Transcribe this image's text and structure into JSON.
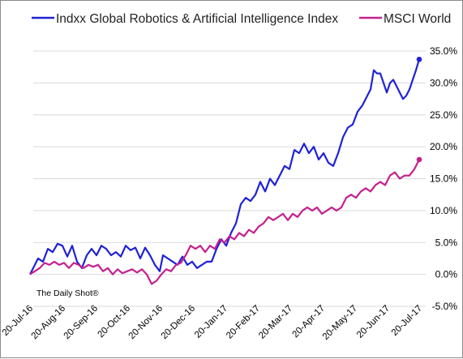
{
  "credit": "The Daily Shot®",
  "chart_data": {
    "type": "line",
    "title": "",
    "xlabel": "",
    "ylabel": "",
    "ylim": [
      -5,
      35
    ],
    "y_ticks": [
      35,
      30,
      25,
      20,
      15,
      10,
      5,
      0,
      -5
    ],
    "y_tick_labels": [
      "35.0%",
      "30.0%",
      "25.0%",
      "20.0%",
      "15.0%",
      "10.0%",
      "5.0%",
      "0.0%",
      "-5.0%"
    ],
    "x_tick_labels": [
      "20-Jul-16",
      "20-Aug-16",
      "20-Sep-16",
      "20-Oct-16",
      "20-Nov-16",
      "20-Dec-16",
      "20-Jan-17",
      "20-Feb-17",
      "20-Mar-17",
      "20-Apr-17",
      "20-May-17",
      "20-Jun-17",
      "20-Jul-17"
    ],
    "grid": "horizontal",
    "legend": "top",
    "series": [
      {
        "name": "Indxx Global Robotics & Artificial Intelligence Index",
        "color": "#1f22d6",
        "points": [
          [
            0.0,
            0.0
          ],
          [
            0.1,
            1.0
          ],
          [
            0.25,
            2.5
          ],
          [
            0.4,
            2.0
          ],
          [
            0.55,
            4.0
          ],
          [
            0.7,
            3.5
          ],
          [
            0.85,
            4.8
          ],
          [
            1.0,
            4.5
          ],
          [
            1.15,
            2.8
          ],
          [
            1.3,
            4.5
          ],
          [
            1.45,
            2.0
          ],
          [
            1.6,
            1.0
          ],
          [
            1.75,
            3.0
          ],
          [
            1.9,
            4.0
          ],
          [
            2.05,
            3.0
          ],
          [
            2.2,
            4.5
          ],
          [
            2.35,
            4.0
          ],
          [
            2.5,
            3.0
          ],
          [
            2.65,
            3.5
          ],
          [
            2.8,
            2.8
          ],
          [
            2.95,
            4.5
          ],
          [
            3.1,
            3.8
          ],
          [
            3.25,
            4.2
          ],
          [
            3.4,
            2.5
          ],
          [
            3.55,
            4.2
          ],
          [
            3.7,
            3.0
          ],
          [
            3.85,
            1.5
          ],
          [
            4.0,
            0.5
          ],
          [
            4.1,
            3.0
          ],
          [
            4.25,
            2.5
          ],
          [
            4.4,
            2.0
          ],
          [
            4.55,
            1.5
          ],
          [
            4.7,
            2.8
          ],
          [
            4.85,
            1.5
          ],
          [
            5.0,
            2.0
          ],
          [
            5.15,
            1.0
          ],
          [
            5.3,
            1.5
          ],
          [
            5.45,
            2.0
          ],
          [
            5.6,
            2.0
          ],
          [
            5.75,
            4.0
          ],
          [
            5.9,
            5.5
          ],
          [
            6.05,
            4.5
          ],
          [
            6.2,
            6.5
          ],
          [
            6.35,
            8.0
          ],
          [
            6.5,
            11.0
          ],
          [
            6.65,
            12.0
          ],
          [
            6.8,
            11.5
          ],
          [
            6.95,
            12.5
          ],
          [
            7.1,
            14.5
          ],
          [
            7.25,
            13.0
          ],
          [
            7.4,
            15.0
          ],
          [
            7.55,
            14.0
          ],
          [
            7.7,
            15.5
          ],
          [
            7.85,
            17.0
          ],
          [
            8.0,
            16.5
          ],
          [
            8.15,
            19.5
          ],
          [
            8.3,
            19.0
          ],
          [
            8.45,
            20.5
          ],
          [
            8.6,
            19.0
          ],
          [
            8.75,
            20.0
          ],
          [
            8.9,
            18.0
          ],
          [
            9.05,
            19.0
          ],
          [
            9.2,
            17.5
          ],
          [
            9.35,
            17.0
          ],
          [
            9.5,
            19.0
          ],
          [
            9.65,
            21.5
          ],
          [
            9.8,
            23.0
          ],
          [
            9.95,
            23.5
          ],
          [
            10.1,
            25.5
          ],
          [
            10.25,
            26.5
          ],
          [
            10.4,
            28.0
          ],
          [
            10.5,
            29.0
          ],
          [
            10.6,
            32.0
          ],
          [
            10.7,
            31.5
          ],
          [
            10.8,
            31.5
          ],
          [
            10.9,
            30.0
          ],
          [
            11.0,
            28.5
          ],
          [
            11.1,
            30.0
          ],
          [
            11.2,
            30.5
          ],
          [
            11.3,
            29.5
          ],
          [
            11.4,
            28.5
          ],
          [
            11.5,
            27.5
          ],
          [
            11.6,
            28.0
          ],
          [
            11.7,
            29.0
          ],
          [
            11.8,
            30.5
          ],
          [
            11.9,
            32.0
          ],
          [
            12.0,
            33.7
          ]
        ]
      },
      {
        "name": "MSCI World",
        "color": "#c4218f",
        "points": [
          [
            0.0,
            0.0
          ],
          [
            0.15,
            0.5
          ],
          [
            0.3,
            1.0
          ],
          [
            0.45,
            1.8
          ],
          [
            0.6,
            1.5
          ],
          [
            0.75,
            2.0
          ],
          [
            0.9,
            1.5
          ],
          [
            1.05,
            1.8
          ],
          [
            1.2,
            1.0
          ],
          [
            1.35,
            1.8
          ],
          [
            1.5,
            1.5
          ],
          [
            1.65,
            1.0
          ],
          [
            1.8,
            1.5
          ],
          [
            1.95,
            1.2
          ],
          [
            2.1,
            1.5
          ],
          [
            2.25,
            0.5
          ],
          [
            2.4,
            1.0
          ],
          [
            2.55,
            0.0
          ],
          [
            2.7,
            0.8
          ],
          [
            2.85,
            0.2
          ],
          [
            3.0,
            0.5
          ],
          [
            3.15,
            0.8
          ],
          [
            3.3,
            0.3
          ],
          [
            3.45,
            0.8
          ],
          [
            3.6,
            0.0
          ],
          [
            3.75,
            -1.5
          ],
          [
            3.9,
            -1.0
          ],
          [
            4.05,
            0.0
          ],
          [
            4.2,
            0.8
          ],
          [
            4.35,
            0.5
          ],
          [
            4.5,
            1.5
          ],
          [
            4.65,
            1.8
          ],
          [
            4.8,
            3.0
          ],
          [
            4.95,
            4.5
          ],
          [
            5.1,
            4.0
          ],
          [
            5.25,
            4.5
          ],
          [
            5.4,
            3.5
          ],
          [
            5.55,
            4.5
          ],
          [
            5.7,
            4.0
          ],
          [
            5.85,
            5.5
          ],
          [
            6.0,
            5.0
          ],
          [
            6.15,
            6.0
          ],
          [
            6.3,
            5.5
          ],
          [
            6.45,
            6.5
          ],
          [
            6.6,
            6.0
          ],
          [
            6.75,
            7.0
          ],
          [
            6.9,
            6.5
          ],
          [
            7.05,
            7.5
          ],
          [
            7.2,
            8.0
          ],
          [
            7.35,
            9.0
          ],
          [
            7.5,
            8.5
          ],
          [
            7.65,
            9.0
          ],
          [
            7.8,
            9.5
          ],
          [
            7.95,
            8.5
          ],
          [
            8.1,
            9.5
          ],
          [
            8.25,
            9.0
          ],
          [
            8.4,
            10.0
          ],
          [
            8.55,
            10.5
          ],
          [
            8.7,
            10.0
          ],
          [
            8.85,
            10.5
          ],
          [
            9.0,
            9.5
          ],
          [
            9.15,
            10.0
          ],
          [
            9.3,
            10.5
          ],
          [
            9.45,
            10.0
          ],
          [
            9.6,
            10.5
          ],
          [
            9.75,
            12.0
          ],
          [
            9.9,
            12.5
          ],
          [
            10.05,
            12.0
          ],
          [
            10.2,
            13.0
          ],
          [
            10.35,
            13.5
          ],
          [
            10.5,
            13.0
          ],
          [
            10.65,
            14.0
          ],
          [
            10.8,
            14.5
          ],
          [
            10.95,
            14.0
          ],
          [
            11.1,
            15.5
          ],
          [
            11.25,
            16.0
          ],
          [
            11.4,
            15.0
          ],
          [
            11.55,
            15.5
          ],
          [
            11.7,
            15.5
          ],
          [
            11.85,
            16.5
          ],
          [
            12.0,
            18.0
          ]
        ]
      }
    ]
  }
}
